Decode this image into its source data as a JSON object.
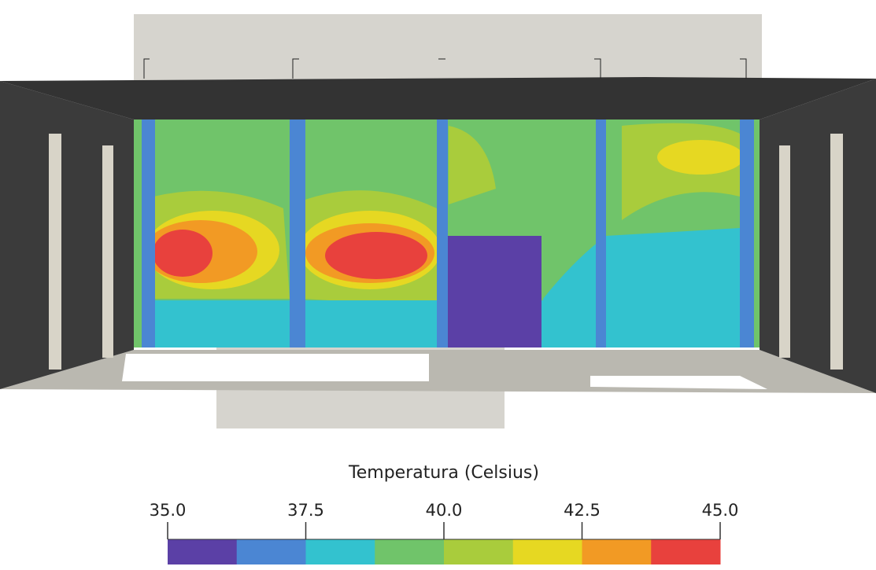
{
  "colorbar": {
    "title": "Temperatura (Celsius)",
    "range": [
      35,
      45
    ],
    "ticks": [
      {
        "value": 35,
        "label": "35.0"
      },
      {
        "value": 37.5,
        "label": "37.5"
      },
      {
        "value": 40,
        "label": "40.0"
      },
      {
        "value": 42.5,
        "label": "42.5"
      },
      {
        "value": 45,
        "label": "45.0"
      }
    ],
    "colors": [
      "#5b40a6",
      "#4b86d3",
      "#33c2cf",
      "#70c46a",
      "#a9cc3c",
      "#e6d822",
      "#f29a24",
      "#e8413d"
    ]
  }
}
